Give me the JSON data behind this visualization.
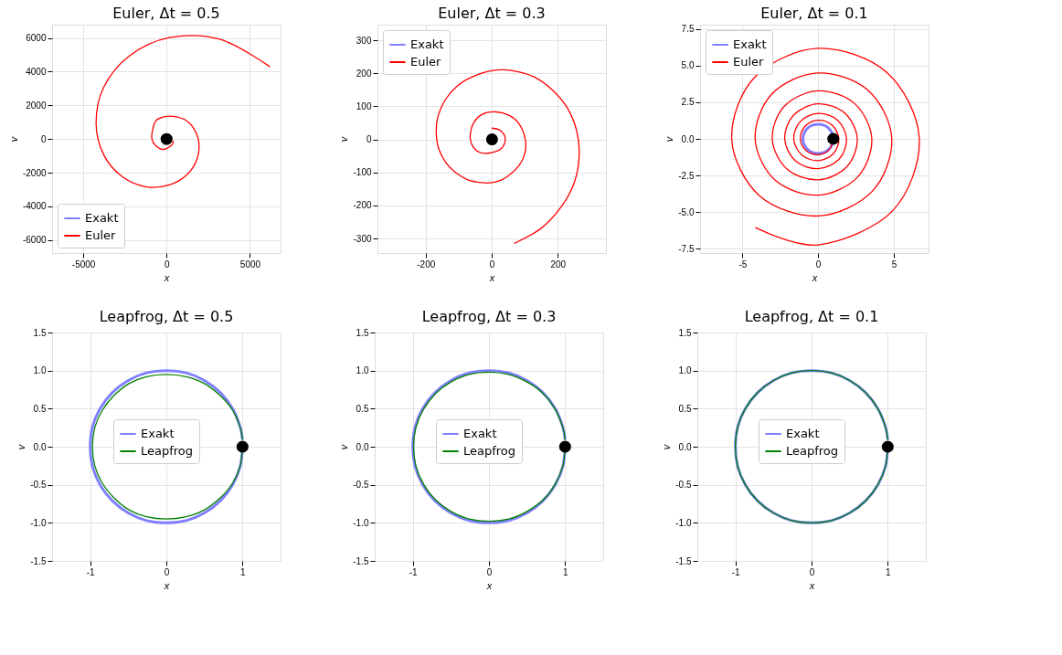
{
  "chart_data": [
    {
      "type": "line",
      "title": "Euler, Δt = 0.5",
      "xlabel": "x",
      "ylabel": "v",
      "xlim": [
        -6870,
        6840
      ],
      "ylim": [
        -6770,
        6790
      ],
      "xticks": [
        -5000,
        0,
        5000
      ],
      "yticks": [
        -6000,
        -4000,
        -2000,
        0,
        2000,
        4000,
        6000
      ],
      "grid": true,
      "legend": "bottom left",
      "series": [
        {
          "name": "Exakt",
          "color": "#8080ff",
          "x": [
            null
          ],
          "values": [
            null
          ]
        },
        {
          "name": "Euler",
          "color": "#ff0000",
          "x": [
            400,
            310,
            -210,
            -690,
            -890,
            -810,
            -640,
            -210,
            360,
            1080,
            1630,
            1940,
            1820,
            1220,
            170,
            -1200,
            -2650,
            -3760,
            -4230,
            -3780,
            -2270,
            170,
            3230,
            6200
          ],
          "values": [
            -100,
            -360,
            -620,
            -360,
            70,
            670,
            1090,
            1300,
            1350,
            1160,
            630,
            -220,
            -1210,
            -2120,
            -2720,
            -2840,
            -2240,
            -960,
            920,
            3060,
            4910,
            6020,
            5920,
            4290
          ]
        },
        {
          "type": "scatter",
          "color": "#000000",
          "x": [
            1
          ],
          "values": [
            0
          ]
        }
      ]
    },
    {
      "type": "line",
      "title": "Euler, Δt = 0.3",
      "xlabel": "x",
      "ylabel": "v",
      "xlim": [
        -346,
        346
      ],
      "ylim": [
        -344,
        347
      ],
      "xticks": [
        -200,
        0,
        200
      ],
      "yticks": [
        -300,
        -200,
        -100,
        0,
        100,
        200,
        300
      ],
      "grid": true,
      "legend": "top left",
      "series": [
        {
          "name": "Exakt",
          "color": "#8080ff",
          "x": [
            null
          ],
          "values": [
            null
          ]
        },
        {
          "name": "Euler",
          "color": "#ff0000",
          "x": [
            0,
            26,
            41,
            30,
            0,
            -35,
            -59,
            -65,
            -54,
            -26,
            13,
            52,
            83,
            102,
            100,
            83,
            39,
            0,
            -30,
            -70,
            -109,
            -139,
            -161,
            -168,
            -163,
            -141,
            -104,
            -57,
            0,
            63,
            128,
            183,
            229,
            257,
            265,
            250,
            210,
            150,
            68
          ],
          "values": [
            34,
            27,
            3,
            -27,
            -40,
            -40,
            -18,
            12,
            51,
            77,
            83,
            73,
            47,
            -1,
            -44,
            -79,
            -118,
            -131,
            -131,
            -123,
            -101,
            -70,
            -27,
            21,
            69,
            119,
            162,
            190,
            208,
            208,
            189,
            150,
            95,
            27,
            -50,
            -131,
            -205,
            -269,
            -315
          ]
        },
        {
          "type": "scatter",
          "color": "#000000",
          "x": [
            1
          ],
          "values": [
            0
          ]
        }
      ]
    },
    {
      "type": "line",
      "title": "Euler, Δt = 0.1",
      "xlabel": "x",
      "ylabel": "v",
      "xlim": [
        -7.8,
        7.3
      ],
      "ylim": [
        -7.8,
        7.8
      ],
      "xticks": [
        -5,
        0,
        5
      ],
      "yticks": [
        {
          "value": -7.5,
          "label": "-7.5"
        },
        {
          "value": -5,
          "label": "-5.0"
        },
        {
          "value": -2.5,
          "label": "-2.5"
        },
        {
          "value": 0,
          "label": "0.0"
        },
        {
          "value": 2.5,
          "label": "2.5"
        },
        {
          "value": 5,
          "label": "5.0"
        },
        {
          "value": 7.5,
          "label": "7.5"
        }
      ],
      "grid": true,
      "legend": "top left",
      "series": [
        {
          "name": "Exakt",
          "color": "#8080ff",
          "x": [
            1,
            0.97,
            0.87,
            0.71,
            0.5,
            0.26,
            0,
            -0.26,
            -0.5,
            -0.71,
            -0.87,
            -0.97,
            -1,
            -0.97,
            -0.87,
            -0.71,
            -0.5,
            -0.26,
            0,
            0.26,
            0.5,
            0.71,
            0.87,
            0.97,
            1
          ],
          "values": [
            0,
            -0.26,
            -0.5,
            -0.71,
            -0.87,
            -0.97,
            -1,
            -0.97,
            -0.87,
            -0.71,
            -0.5,
            -0.26,
            0,
            0.26,
            0.5,
            0.71,
            0.87,
            0.97,
            1,
            0.97,
            0.87,
            0.71,
            0.5,
            0.26,
            0.09
          ]
        },
        {
          "name": "Euler",
          "color": "#ff0000",
          "x": [
            1,
            0.74,
            0,
            -0.8,
            -1.17,
            -0.86,
            0,
            0.93,
            1.37,
            1.01,
            0,
            -1.09,
            -1.61,
            -1.18,
            0,
            1.28,
            1.88,
            1.39,
            0,
            -1.5,
            -2.21,
            -1.62,
            0,
            1.76,
            2.59,
            1.9,
            0,
            -2.06,
            -3.03,
            -2.23,
            0,
            2.41,
            3.55,
            2.61,
            0,
            -2.83,
            -4.16,
            -3.06,
            0,
            3.31,
            4.87,
            3.58,
            0,
            -3.88,
            -5.71,
            -4.2,
            0,
            4.54,
            6.69,
            4.92,
            0,
            -4.15
          ],
          "values": [
            0,
            -0.74,
            -1.08,
            -0.8,
            0,
            0.86,
            1.27,
            0.93,
            0,
            -1.01,
            -1.49,
            -1.09,
            0,
            1.18,
            1.74,
            1.28,
            0,
            -1.39,
            -2.04,
            -1.5,
            0,
            1.62,
            2.39,
            1.76,
            0,
            -1.9,
            -2.8,
            -2.06,
            0,
            2.23,
            3.28,
            2.41,
            0,
            -2.61,
            -3.84,
            -2.83,
            0,
            3.06,
            4.5,
            3.31,
            0,
            -3.58,
            -5.27,
            -3.88,
            0,
            4.2,
            6.18,
            4.54,
            0,
            -4.92,
            -7.24,
            -6.05
          ]
        },
        {
          "type": "scatter",
          "color": "#000000",
          "x": [
            1
          ],
          "values": [
            0
          ]
        }
      ]
    },
    {
      "type": "line",
      "title": "Leapfrog, Δt = 0.5",
      "xlabel": "x",
      "ylabel": "v",
      "xlim": [
        -1.5,
        1.5
      ],
      "ylim": [
        -1.5,
        1.5
      ],
      "xticks": [
        -1,
        0,
        1
      ],
      "yticks": [
        {
          "value": -1.5,
          "label": "-1.5"
        },
        {
          "value": -1,
          "label": "-1.0"
        },
        {
          "value": -0.5,
          "label": "-0.5"
        },
        {
          "value": 0,
          "label": "0.0"
        },
        {
          "value": 0.5,
          "label": "0.5"
        },
        {
          "value": 1,
          "label": "1.0"
        },
        {
          "value": 1.5,
          "label": "1.5"
        }
      ],
      "grid": true,
      "legend": "center",
      "series": [
        {
          "name": "Exakt",
          "color": "#8080ff",
          "x": [
            1,
            0.97,
            0.87,
            0.71,
            0.5,
            0.26,
            0,
            -0.26,
            -0.5,
            -0.71,
            -0.87,
            -0.97,
            -1,
            -0.97,
            -0.87,
            -0.71,
            -0.5,
            -0.26,
            0,
            0.26,
            0.5,
            0.71,
            0.87,
            0.97,
            1
          ],
          "values": [
            0,
            -0.26,
            -0.5,
            -0.71,
            -0.87,
            -0.97,
            -1,
            -0.97,
            -0.87,
            -0.71,
            -0.5,
            -0.26,
            0,
            0.26,
            0.5,
            0.71,
            0.87,
            0.97,
            1,
            0.97,
            0.87,
            0.71,
            0.5,
            0.26,
            0.09
          ]
        },
        {
          "name": "Leapfrog",
          "color": "#008000",
          "x": [
            1,
            0.97,
            0.87,
            0.71,
            0.5,
            0.26,
            0,
            -0.26,
            -0.49,
            -0.69,
            -0.84,
            -0.94,
            -0.97,
            -0.94,
            -0.84,
            -0.69,
            -0.49,
            -0.26,
            0,
            0.26,
            0.5,
            0.71,
            0.87,
            0.97,
            1
          ],
          "values": [
            0,
            -0.25,
            -0.48,
            -0.67,
            -0.83,
            -0.92,
            -0.95,
            -0.92,
            -0.83,
            -0.67,
            -0.48,
            -0.25,
            0,
            0.25,
            0.48,
            0.67,
            0.83,
            0.92,
            0.95,
            0.92,
            0.83,
            0.67,
            0.48,
            0.25,
            0.09
          ]
        },
        {
          "type": "scatter",
          "color": "#000000",
          "x": [
            1
          ],
          "values": [
            0
          ]
        }
      ]
    },
    {
      "type": "line",
      "title": "Leapfrog, Δt = 0.3",
      "xlabel": "x",
      "ylabel": "v",
      "xlim": [
        -1.5,
        1.5
      ],
      "ylim": [
        -1.5,
        1.5
      ],
      "xticks": [
        -1,
        0,
        1
      ],
      "yticks": [
        {
          "value": -1.5,
          "label": "-1.5"
        },
        {
          "value": -1,
          "label": "-1.0"
        },
        {
          "value": -0.5,
          "label": "-0.5"
        },
        {
          "value": 0,
          "label": "0.0"
        },
        {
          "value": 0.5,
          "label": "0.5"
        },
        {
          "value": 1,
          "label": "1.0"
        },
        {
          "value": 1.5,
          "label": "1.5"
        }
      ],
      "grid": true,
      "legend": "center",
      "series": [
        {
          "name": "Exakt",
          "color": "#8080ff",
          "x": [
            1,
            0.97,
            0.87,
            0.71,
            0.5,
            0.26,
            0,
            -0.26,
            -0.5,
            -0.71,
            -0.87,
            -0.97,
            -1,
            -0.97,
            -0.87,
            -0.71,
            -0.5,
            -0.26,
            0,
            0.26,
            0.5,
            0.71,
            0.87,
            0.97,
            1
          ],
          "values": [
            0,
            -0.26,
            -0.5,
            -0.71,
            -0.87,
            -0.97,
            -1,
            -0.97,
            -0.87,
            -0.71,
            -0.5,
            -0.26,
            0,
            0.26,
            0.5,
            0.71,
            0.87,
            0.97,
            1,
            0.97,
            0.87,
            0.71,
            0.5,
            0.26,
            0.09
          ]
        },
        {
          "name": "Leapfrog",
          "color": "#008000",
          "x": [
            1,
            0.97,
            0.87,
            0.71,
            0.5,
            0.26,
            0,
            -0.26,
            -0.5,
            -0.7,
            -0.86,
            -0.96,
            -0.99,
            -0.96,
            -0.86,
            -0.7,
            -0.5,
            -0.26,
            0,
            0.26,
            0.5,
            0.71,
            0.87,
            0.97,
            1
          ],
          "values": [
            0,
            -0.25,
            -0.49,
            -0.7,
            -0.85,
            -0.95,
            -0.98,
            -0.95,
            -0.85,
            -0.7,
            -0.49,
            -0.25,
            0,
            0.25,
            0.49,
            0.7,
            0.85,
            0.95,
            0.98,
            0.95,
            0.85,
            0.7,
            0.49,
            0.25,
            0.09
          ]
        },
        {
          "type": "scatter",
          "color": "#000000",
          "x": [
            1
          ],
          "values": [
            0
          ]
        }
      ]
    },
    {
      "type": "line",
      "title": "Leapfrog, Δt = 0.1",
      "xlabel": "x",
      "ylabel": "v",
      "xlim": [
        -1.5,
        1.5
      ],
      "ylim": [
        -1.5,
        1.5
      ],
      "xticks": [
        -1,
        0,
        1
      ],
      "yticks": [
        {
          "value": -1.5,
          "label": "-1.5"
        },
        {
          "value": -1,
          "label": "-1.0"
        },
        {
          "value": -0.5,
          "label": "-0.5"
        },
        {
          "value": 0,
          "label": "0.0"
        },
        {
          "value": 0.5,
          "label": "0.5"
        },
        {
          "value": 1,
          "label": "1.0"
        },
        {
          "value": 1.5,
          "label": "1.5"
        }
      ],
      "grid": true,
      "legend": "center",
      "series": [
        {
          "name": "Exakt",
          "color": "#8080ff",
          "x": [
            1,
            0.97,
            0.87,
            0.71,
            0.5,
            0.26,
            0,
            -0.26,
            -0.5,
            -0.71,
            -0.87,
            -0.97,
            -1,
            -0.97,
            -0.87,
            -0.71,
            -0.5,
            -0.26,
            0,
            0.26,
            0.5,
            0.71,
            0.87,
            0.97,
            1
          ],
          "values": [
            0,
            -0.26,
            -0.5,
            -0.71,
            -0.87,
            -0.97,
            -1,
            -0.97,
            -0.87,
            -0.71,
            -0.5,
            -0.26,
            0,
            0.26,
            0.5,
            0.71,
            0.87,
            0.97,
            1,
            0.97,
            0.87,
            0.71,
            0.5,
            0.26,
            0.09
          ]
        },
        {
          "name": "Leapfrog",
          "color": "#008000",
          "x": [
            1,
            0.97,
            0.87,
            0.71,
            0.5,
            0.26,
            0,
            -0.26,
            -0.5,
            -0.71,
            -0.87,
            -0.97,
            -1,
            -0.97,
            -0.87,
            -0.71,
            -0.5,
            -0.26,
            0,
            0.26,
            0.5,
            0.71,
            0.87,
            0.97,
            1
          ],
          "values": [
            0,
            -0.26,
            -0.5,
            -0.71,
            -0.87,
            -0.97,
            -1,
            -0.97,
            -0.87,
            -0.71,
            -0.5,
            -0.26,
            0,
            0.26,
            0.5,
            0.71,
            0.87,
            0.97,
            1,
            0.97,
            0.87,
            0.71,
            0.5,
            0.26,
            0.09
          ]
        },
        {
          "type": "scatter",
          "color": "#000000",
          "x": [
            1
          ],
          "values": [
            0
          ]
        }
      ]
    }
  ]
}
